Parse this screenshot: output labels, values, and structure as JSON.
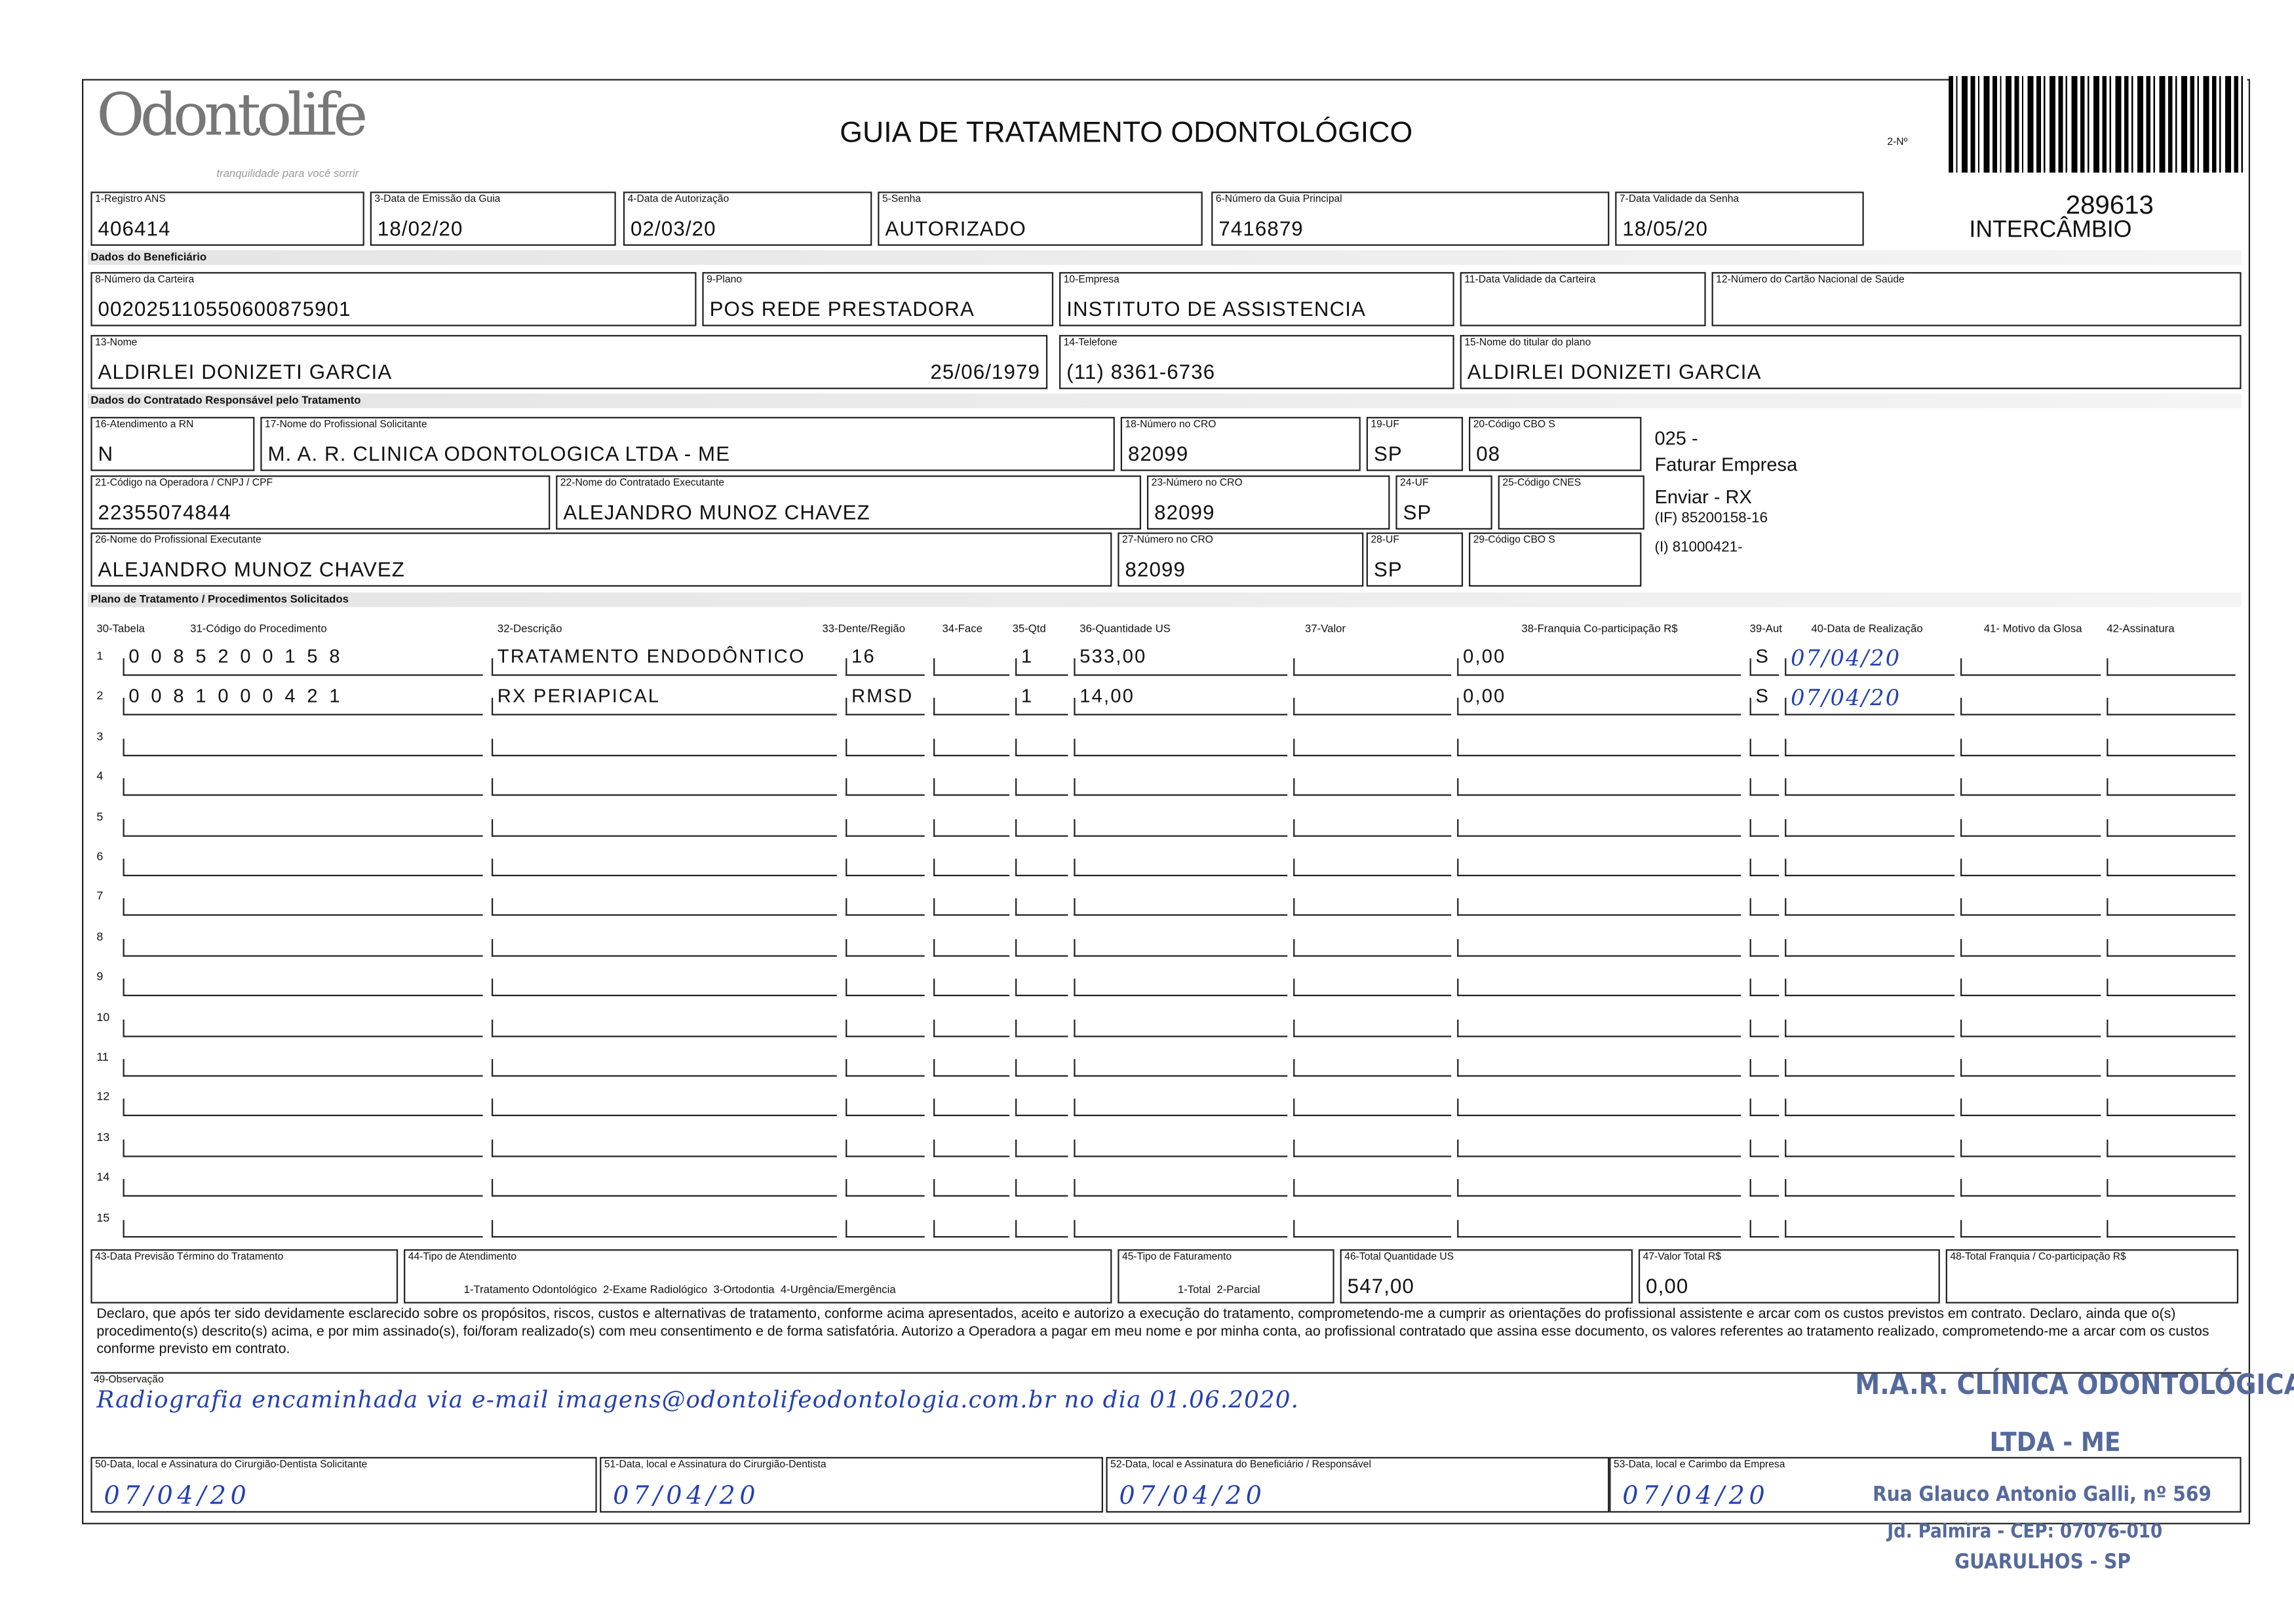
{
  "header": {
    "logo": "Odontolife",
    "tagline": "tranquilidade para você sorrir",
    "title": "GUIA DE TRATAMENTO ODONTOLÓGICO",
    "number_label": "2-Nº",
    "guide_number": "289613",
    "exchange": "INTERCÂMBIO"
  },
  "sections": [
    "Dados do Beneficiário",
    "Dados do Contratado Responsável pelo Tratamento",
    "Plano de Tratamento / Procedimentos Solicitados"
  ],
  "fields": [
    {
      "label": "1-Registro ANS",
      "value": "406414"
    },
    {
      "label": "3-Data de Emissão da Guia",
      "value": "18/02/20"
    },
    {
      "label": "4-Data de Autorização",
      "value": "02/03/20"
    },
    {
      "label": "5-Senha",
      "value": "AUTORIZADO"
    },
    {
      "label": "6-Número da Guia Principal",
      "value": "7416879"
    },
    {
      "label": "7-Data Validade da Senha",
      "value": "18/05/20"
    },
    {
      "label": "8-Número da Carteira",
      "value": "002025110550600875901"
    },
    {
      "label": "9-Plano",
      "value": "POS REDE PRESTADORA"
    },
    {
      "label": "10-Empresa",
      "value": "INSTITUTO DE ASSISTENCIA"
    },
    {
      "label": "11-Data Validade da Carteira"
    },
    {
      "label": "12-Número do Cartão Nacional de Saúde"
    },
    {
      "label": "13-Nome",
      "value": "ALDIRLEI DONIZETI GARCIA",
      "extra": "25/06/1979"
    },
    {
      "label": "14-Telefone",
      "value": "(11) 8361-6736"
    },
    {
      "label": "15-Nome do titular do plano",
      "value": "ALDIRLEI DONIZETI GARCIA"
    },
    {
      "label": "16-Atendimento a RN",
      "value": "N"
    },
    {
      "label": "17-Nome do Profissional Solicitante",
      "value": "M. A. R. CLINICA ODONTOLOGICA LTDA - ME"
    },
    {
      "label": "18-Número no CRO",
      "value": "82099"
    },
    {
      "label": "19-UF",
      "value": "SP"
    },
    {
      "label": "20-Código CBO S",
      "value": "08"
    },
    {
      "label": "21-Código na Operadora / CNPJ / CPF",
      "value": "22355074844"
    },
    {
      "label": "22-Nome do Contratado Executante",
      "value": "ALEJANDRO MUNOZ CHAVEZ"
    },
    {
      "label": "23-Número no CRO",
      "value": "82099"
    },
    {
      "label": "24-UF",
      "value": "SP"
    },
    {
      "label": "25-Código CNES"
    },
    {
      "label": "26-Nome do Profissional Executante",
      "value": "ALEJANDRO MUNOZ CHAVEZ"
    },
    {
      "label": "27-Número no CRO",
      "value": "82099"
    },
    {
      "label": "28-UF",
      "value": "SP"
    },
    {
      "label": "29-Código CBO S"
    },
    {
      "label": "43-Data Previsão Término do Tratamento"
    },
    {
      "label": "44-Tipo de Atendimento",
      "options": "1-Tratamento Odontológico  2-Exame Radiológico  3-Ortodontia  4-Urgência/Emergência"
    },
    {
      "label": "45-Tipo de Faturamento",
      "options": "1-Total  2-Parcial"
    },
    {
      "label": "46-Total Quantidade US",
      "value": "547,00"
    },
    {
      "label": "47-Valor Total R$",
      "value": "0,00"
    },
    {
      "label": "48-Total Franquia / Co-participação R$"
    }
  ],
  "notes": [
    "025 -",
    "Faturar Empresa",
    "Enviar - RX",
    "(IF) 85200158-16",
    "(I) 81000421-"
  ],
  "table": {
    "headers": [
      "30-Tabela",
      "31-Código do Procedimento",
      "32-Descrição",
      "33-Dente/Região",
      "34-Face",
      "35-Qtd",
      "36-Quantidade US",
      "37-Valor",
      "38-Franquia Co-participação R$",
      "39-Aut",
      "40-Data de Realização",
      "41- Motivo da Glosa",
      "42-Assinatura"
    ],
    "rows": [
      {
        "number": "1",
        "code": "0085200158",
        "description": "TRATAMENTO ENDODÔNTICO",
        "tooth": "16",
        "quantity": "1",
        "us": "533,00",
        "copay": "0,00",
        "authorized": "S",
        "date": "07/04/20"
      },
      {
        "number": "2",
        "code": "0081000421",
        "description": "RX PERIAPICAL",
        "tooth": "RMSD",
        "quantity": "1",
        "us": "14,00",
        "copay": "0,00",
        "authorized": "S",
        "date": "07/04/20"
      },
      {
        "number": "3"
      },
      {
        "number": "4"
      },
      {
        "number": "5"
      },
      {
        "number": "6"
      },
      {
        "number": "7"
      },
      {
        "number": "8"
      },
      {
        "number": "9"
      },
      {
        "number": "10"
      },
      {
        "number": "11"
      },
      {
        "number": "12"
      },
      {
        "number": "13"
      },
      {
        "number": "14"
      },
      {
        "number": "15"
      }
    ]
  },
  "declaration": "Declaro, que após ter sido devidamente esclarecido sobre os propósitos, riscos, custos e alternativas de tratamento, conforme acima apresentados, aceito e autorizo a execução do tratamento, comprometendo-me a cumprir as orientações do profissional assistente e arcar com os custos previstos em contrato. Declaro, ainda que o(s) procedimento(s) descrito(s) acima, e por mim assinado(s), foi/foram realizado(s) com meu consentimento e de forma satisfatória. Autorizo a Operadora a pagar em meu nome e por minha conta, ao profissional contratado que assina esse documento, os valores referentes ao tratamento realizado, comprometendo-me a arcar com os custos conforme previsto em contrato.",
  "observation": {
    "label": "49-Observação",
    "value": "Radiografia encaminhada via e-mail imagens@odontolifeodontologia.com.br no dia 01.06.2020."
  },
  "signatures": [
    {
      "label": "50-Data, local e Assinatura do Cirurgião-Dentista Solicitante",
      "date": "07/04/20"
    },
    {
      "label": "51-Data, local e Assinatura do Cirurgião-Dentista",
      "date": "07/04/20"
    },
    {
      "label": "52-Data, local e Assinatura do Beneficiário / Responsável",
      "date": "07/04/20"
    },
    {
      "label": "53-Data, local e Carimbo da Empresa",
      "date": "07/04/20"
    }
  ],
  "stamp": [
    "M.A.R. CLÍNICA ODONTOLÓGICA",
    "LTDA - ME",
    "Rua Glauco Antonio Galli, nº 569",
    "Jd. Palmira - CEP: 07076-010",
    "GUARULHOS - SP"
  ]
}
